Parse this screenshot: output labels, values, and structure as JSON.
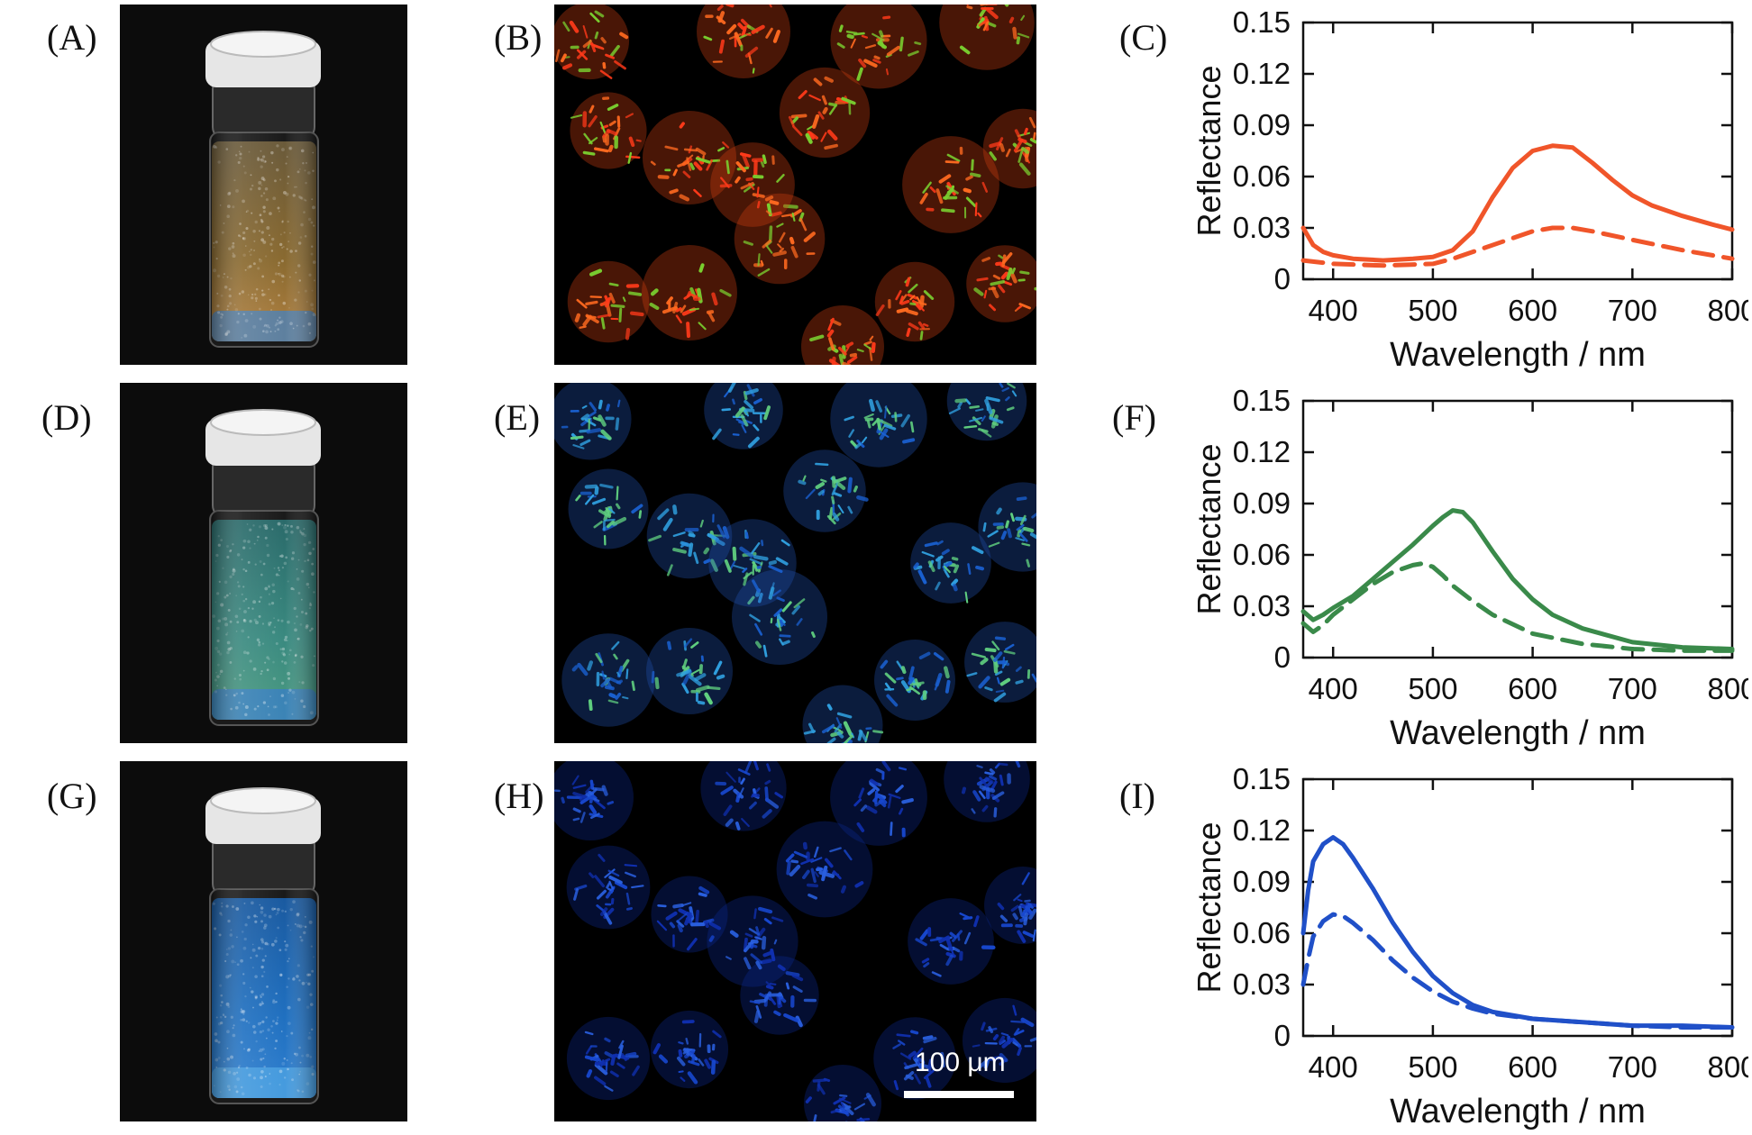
{
  "figure": {
    "panels": [
      {
        "label": "(A)",
        "kind": "photo",
        "liquid_top": "#6a5a3a",
        "liquid_mid": "#8a6a30",
        "liquid_bottom": "#b08040",
        "sediment": "#5080b0"
      },
      {
        "label": "(B)",
        "kind": "micrograph",
        "palette": [
          "#ff3a1a",
          "#ff6a20",
          "#7ad030",
          "#d04010"
        ]
      },
      {
        "label": "(C)",
        "kind": "chart",
        "chart_index": 0
      },
      {
        "label": "(D)",
        "kind": "photo",
        "liquid_top": "#2a6a6a",
        "liquid_mid": "#3a8a80",
        "liquid_bottom": "#4a9a80",
        "sediment": "#3a80c0"
      },
      {
        "label": "(E)",
        "kind": "micrograph",
        "palette": [
          "#1a60d0",
          "#30a0e0",
          "#60d080",
          "#2050b0"
        ]
      },
      {
        "label": "(F)",
        "kind": "chart",
        "chart_index": 1
      },
      {
        "label": "(G)",
        "kind": "photo",
        "liquid_top": "#1a5aa0",
        "liquid_mid": "#2070c0",
        "liquid_bottom": "#3080d0",
        "sediment": "#4aa0e0"
      },
      {
        "label": "(H)",
        "kind": "micrograph",
        "palette": [
          "#1030b0",
          "#1848d0",
          "#2a60e0",
          "#0c2890"
        ]
      },
      {
        "label": "(I)",
        "kind": "chart",
        "chart_index": 2
      }
    ],
    "scale_bar": {
      "text": "100 μm"
    }
  },
  "chart_data": [
    {
      "type": "line",
      "title": "",
      "xlabel": "Wavelength / nm",
      "ylabel": "Reflectance",
      "xlim": [
        370,
        800
      ],
      "ylim": [
        0,
        0.15
      ],
      "xticks": [
        400,
        500,
        600,
        700,
        800
      ],
      "yticks": [
        0,
        0.03,
        0.06,
        0.09,
        0.12,
        0.15
      ],
      "ytick_labels": [
        "0",
        "0.03",
        "0.06",
        "0.09",
        "0.12",
        "0.15"
      ],
      "color": "#f0552a",
      "series": [
        {
          "style": "solid",
          "x": [
            370,
            380,
            390,
            400,
            420,
            450,
            480,
            500,
            520,
            540,
            560,
            580,
            600,
            620,
            640,
            660,
            680,
            700,
            720,
            750,
            780,
            800
          ],
          "values": [
            0.03,
            0.02,
            0.016,
            0.014,
            0.012,
            0.011,
            0.012,
            0.013,
            0.017,
            0.028,
            0.048,
            0.065,
            0.075,
            0.078,
            0.077,
            0.068,
            0.058,
            0.049,
            0.043,
            0.037,
            0.032,
            0.029
          ]
        },
        {
          "style": "dashed",
          "x": [
            370,
            400,
            450,
            500,
            520,
            550,
            580,
            600,
            620,
            640,
            660,
            700,
            750,
            800
          ],
          "values": [
            0.011,
            0.009,
            0.008,
            0.009,
            0.012,
            0.018,
            0.024,
            0.028,
            0.03,
            0.03,
            0.028,
            0.023,
            0.017,
            0.012
          ]
        }
      ]
    },
    {
      "type": "line",
      "title": "",
      "xlabel": "Wavelength / nm",
      "ylabel": "Reflectance",
      "xlim": [
        370,
        800
      ],
      "ylim": [
        0,
        0.15
      ],
      "xticks": [
        400,
        500,
        600,
        700,
        800
      ],
      "yticks": [
        0,
        0.03,
        0.06,
        0.09,
        0.12,
        0.15
      ],
      "ytick_labels": [
        "0",
        "0.03",
        "0.06",
        "0.09",
        "0.12",
        "0.15"
      ],
      "color": "#3a8a4a",
      "series": [
        {
          "style": "solid",
          "x": [
            370,
            380,
            390,
            400,
            420,
            440,
            460,
            480,
            500,
            510,
            520,
            530,
            540,
            560,
            580,
            600,
            620,
            650,
            700,
            750,
            800
          ],
          "values": [
            0.027,
            0.022,
            0.025,
            0.029,
            0.036,
            0.046,
            0.056,
            0.066,
            0.077,
            0.082,
            0.086,
            0.085,
            0.079,
            0.062,
            0.046,
            0.034,
            0.025,
            0.017,
            0.009,
            0.006,
            0.005
          ]
        },
        {
          "style": "dashed",
          "x": [
            370,
            380,
            390,
            400,
            420,
            440,
            460,
            480,
            490,
            500,
            510,
            520,
            540,
            560,
            600,
            650,
            700,
            750,
            800
          ],
          "values": [
            0.02,
            0.015,
            0.019,
            0.025,
            0.034,
            0.043,
            0.05,
            0.054,
            0.055,
            0.053,
            0.048,
            0.042,
            0.033,
            0.025,
            0.014,
            0.008,
            0.005,
            0.004,
            0.004
          ]
        }
      ]
    },
    {
      "type": "line",
      "title": "",
      "xlabel": "Wavelength / nm",
      "ylabel": "Reflectance",
      "xlim": [
        370,
        800
      ],
      "ylim": [
        0,
        0.15
      ],
      "xticks": [
        400,
        500,
        600,
        700,
        800
      ],
      "yticks": [
        0,
        0.03,
        0.06,
        0.09,
        0.12,
        0.15
      ],
      "ytick_labels": [
        "0",
        "0.03",
        "0.06",
        "0.09",
        "0.12",
        "0.15"
      ],
      "color": "#2050c8",
      "series": [
        {
          "style": "solid",
          "x": [
            370,
            375,
            380,
            390,
            400,
            410,
            420,
            440,
            460,
            480,
            500,
            520,
            540,
            560,
            600,
            650,
            700,
            750,
            800
          ],
          "values": [
            0.06,
            0.085,
            0.102,
            0.112,
            0.116,
            0.112,
            0.104,
            0.086,
            0.066,
            0.049,
            0.035,
            0.025,
            0.018,
            0.014,
            0.01,
            0.008,
            0.006,
            0.006,
            0.005
          ]
        },
        {
          "style": "dashed",
          "x": [
            370,
            375,
            380,
            390,
            400,
            410,
            420,
            440,
            460,
            480,
            500,
            520,
            540,
            560,
            600,
            650,
            700,
            750,
            800
          ],
          "values": [
            0.03,
            0.045,
            0.058,
            0.067,
            0.071,
            0.07,
            0.066,
            0.056,
            0.044,
            0.034,
            0.026,
            0.02,
            0.016,
            0.013,
            0.01,
            0.008,
            0.006,
            0.005,
            0.005
          ]
        }
      ]
    }
  ]
}
